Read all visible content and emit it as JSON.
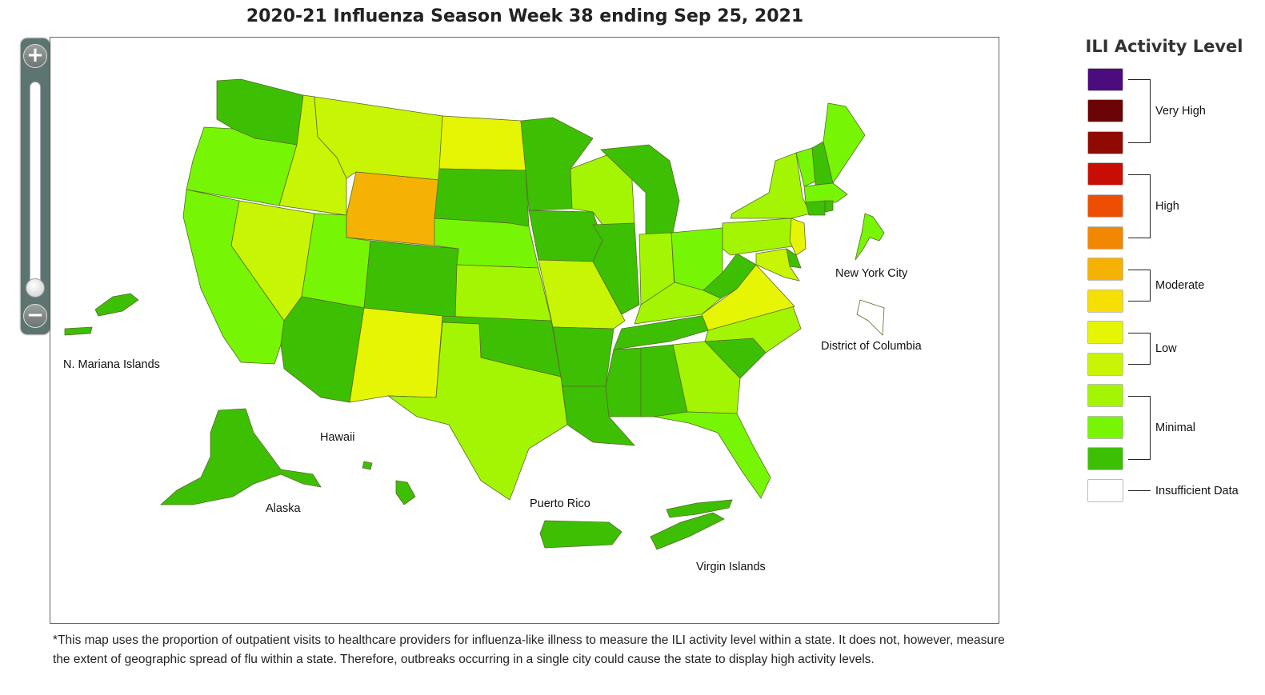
{
  "title": "2020-21 Influenza Season Week 38 ending Sep 25, 2021",
  "zoom": {
    "in_label": "+",
    "out_label": "−",
    "level_fraction": 0.0
  },
  "legend": {
    "title": "ILI Activity Level",
    "swatches": [
      "#4b0d7d",
      "#6b0505",
      "#8f0a02",
      "#c80d04",
      "#ee4e04",
      "#f28704",
      "#f5b104",
      "#f5df04",
      "#e6f504",
      "#c8f504",
      "#a4f504",
      "#76f604",
      "#3dbf04",
      "#ffffff"
    ],
    "groups": [
      {
        "label": "Very High"
      },
      {
        "label": "High"
      },
      {
        "label": "Moderate"
      },
      {
        "label": "Low"
      },
      {
        "label": "Minimal"
      }
    ],
    "insufficient_label": "Insufficient Data"
  },
  "level_colors": {
    "1": "#3dbf04",
    "2": "#76f604",
    "3": "#a4f504",
    "4": "#c8f504",
    "5": "#e6f504",
    "6": "#f5df04",
    "7": "#f5b104",
    "8": "#f28704",
    "9": "#ee4e04",
    "10": "#c80d04",
    "11": "#8f0a02",
    "12": "#6b0505",
    "13": "#4b0d7d",
    "0": "#ffffff"
  },
  "map": {
    "labels": {
      "nyc": "New York City",
      "dc": "District of Columbia",
      "mariana": "N. Mariana Islands",
      "hawaii": "Hawaii",
      "alaska": "Alaska",
      "puerto_rico": "Puerto Rico",
      "virgin_islands": "Virgin Islands"
    },
    "state_levels": {
      "WA": 1,
      "OR": 2,
      "CA": 2,
      "ID": 4,
      "NV": 4,
      "MT": 4,
      "WY": 7,
      "UT": 2,
      "AZ": 1,
      "CO": 1,
      "NM": 5,
      "ND": 5,
      "SD": 1,
      "NE": 2,
      "KS": 3,
      "OK": 1,
      "TX": 3,
      "MN": 1,
      "IA": 1,
      "MO": 4,
      "AR": 1,
      "LA": 1,
      "WI": 3,
      "IL": 1,
      "MI": 1,
      "IN": 3,
      "OH": 2,
      "KY": 3,
      "TN": 1,
      "MS": 1,
      "AL": 1,
      "GA": 3,
      "FL": 2,
      "SC": 1,
      "NC": 3,
      "VA": 5,
      "WV": 1,
      "PA": 3,
      "NY": 3,
      "VT": 2,
      "NH": 1,
      "ME": 2,
      "MA": 2,
      "CT": 1,
      "RI": 1,
      "NJ": 5,
      "DE": 1,
      "MD": 4,
      "AK": 1,
      "HI": 1,
      "PR": 1,
      "VI": 1,
      "MP": 1,
      "NYC": 2,
      "DC": 0
    }
  },
  "footnote": "*This map uses the proportion of outpatient visits to healthcare providers for influenza-like illness to measure the ILI activity level within a state. It does not, however, measure the extent of geographic spread of flu within a state. Therefore, outbreaks occurring in a single city could cause the state to display high activity levels."
}
